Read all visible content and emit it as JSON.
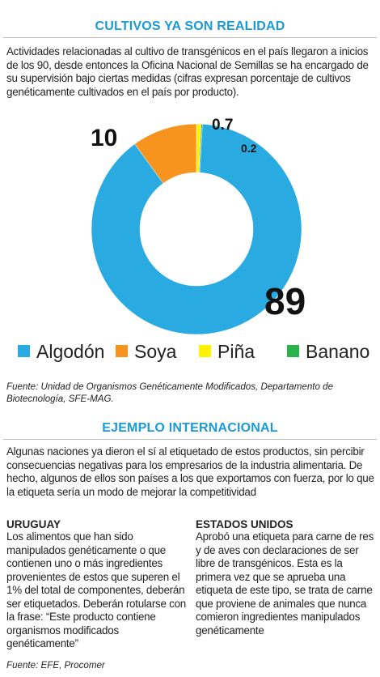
{
  "header": {
    "title": "CULTIVOS YA SON REALIDAD",
    "intro": "Actividades relacionadas al cultivo de transgénicos en el país llegaron a inicios de los 90, desde entonces la Oficina Nacional de Semillas se ha encargado de su supervisión bajo ciertas medidas (cifras expresan porcentaje de cultivos genéticamente cultivados en el país por producto)."
  },
  "chart_data": {
    "type": "pie",
    "categories": [
      "Soya",
      "Piña",
      "Banano",
      "Algodón"
    ],
    "values": [
      10,
      0.7,
      0.2,
      89
    ],
    "colors": [
      "#f7941d",
      "#fff200",
      "#2ab24b",
      "#29abe2"
    ],
    "donut": true
  },
  "legend_order": [
    3,
    0,
    1,
    2
  ],
  "source": "Fuente: Unidad de Organismos Genéticamente Modificados, Departamento de Biotecnología, SFE-MAG.",
  "section": {
    "title": "EJEMPLO INTERNACIONAL",
    "intro": "Algunas naciones ya dieron el sí al etiquetado de estos productos, sin percibir consecuencias negativas para los empresarios de la industria alimentaria. De hecho, algunos de ellos son países a los que exportamos con fuerza, por lo que la etiqueta sería un modo de mejorar la competitividad",
    "columns": [
      {
        "heading": "URUGUAY",
        "text": "Los alimentos que han sido manipulados genéticamente o que contienen uno o más ingredientes provenientes de estos que superen el 1% del total de componentes, deberán ser etiquetados. Deberán rotularse con la frase: “Este producto contiene organismos modificados genéticamente”"
      },
      {
        "heading": "ESTADOS UNIDOS",
        "text": "Aprobó una etiqueta para carne de res y de aves con declaraciones de ser libre de transgénicos. Esta es la primera vez que se aprueba una etiqueta de este tipo, se trata de carne que proviene de animales que nunca comieron ingredientes manipulados genéticamente"
      }
    ]
  },
  "footer": "Fuente: EFE, Procomer"
}
